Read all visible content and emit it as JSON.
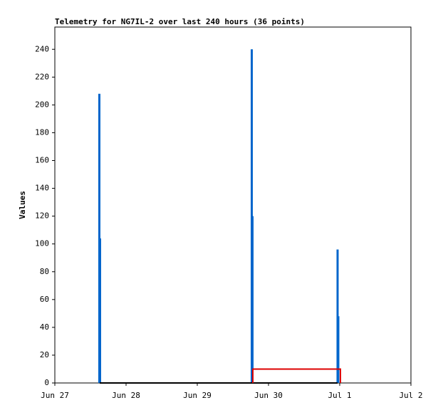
{
  "chart_data": {
    "type": "telemetry",
    "title": "Telemetry for NG7IL-2 over last 240 hours (36 points)",
    "y_label": "Values",
    "xlim": [
      0,
      5
    ],
    "ylim": [
      0,
      256
    ],
    "xticks": [
      {
        "value": 0,
        "label": "Jun 27"
      },
      {
        "value": 1,
        "label": "Jun 28"
      },
      {
        "value": 2,
        "label": "Jun 29"
      },
      {
        "value": 3,
        "label": "Jun 30"
      },
      {
        "value": 4,
        "label": "Jul 1"
      },
      {
        "value": 5,
        "label": "Jul 2"
      }
    ],
    "yticks": [
      0,
      20,
      40,
      60,
      80,
      100,
      120,
      140,
      160,
      180,
      200,
      220,
      240
    ],
    "series": [
      {
        "style": "impulse",
        "color": "#0066cc",
        "x": [
          0.625,
          0.635,
          2.765,
          2.775,
          3.97,
          3.98
        ],
        "values": [
          208,
          104,
          240,
          120,
          96,
          48
        ]
      },
      {
        "style": "line",
        "color": "#000000",
        "x": [
          0.63,
          2.77,
          3.97
        ],
        "values": [
          0,
          0,
          0
        ]
      },
      {
        "style": "line",
        "color": "#dd0000",
        "x": [
          2.78,
          2.78,
          4.01,
          4.01
        ],
        "values": [
          0,
          10,
          10,
          0
        ]
      }
    ]
  }
}
